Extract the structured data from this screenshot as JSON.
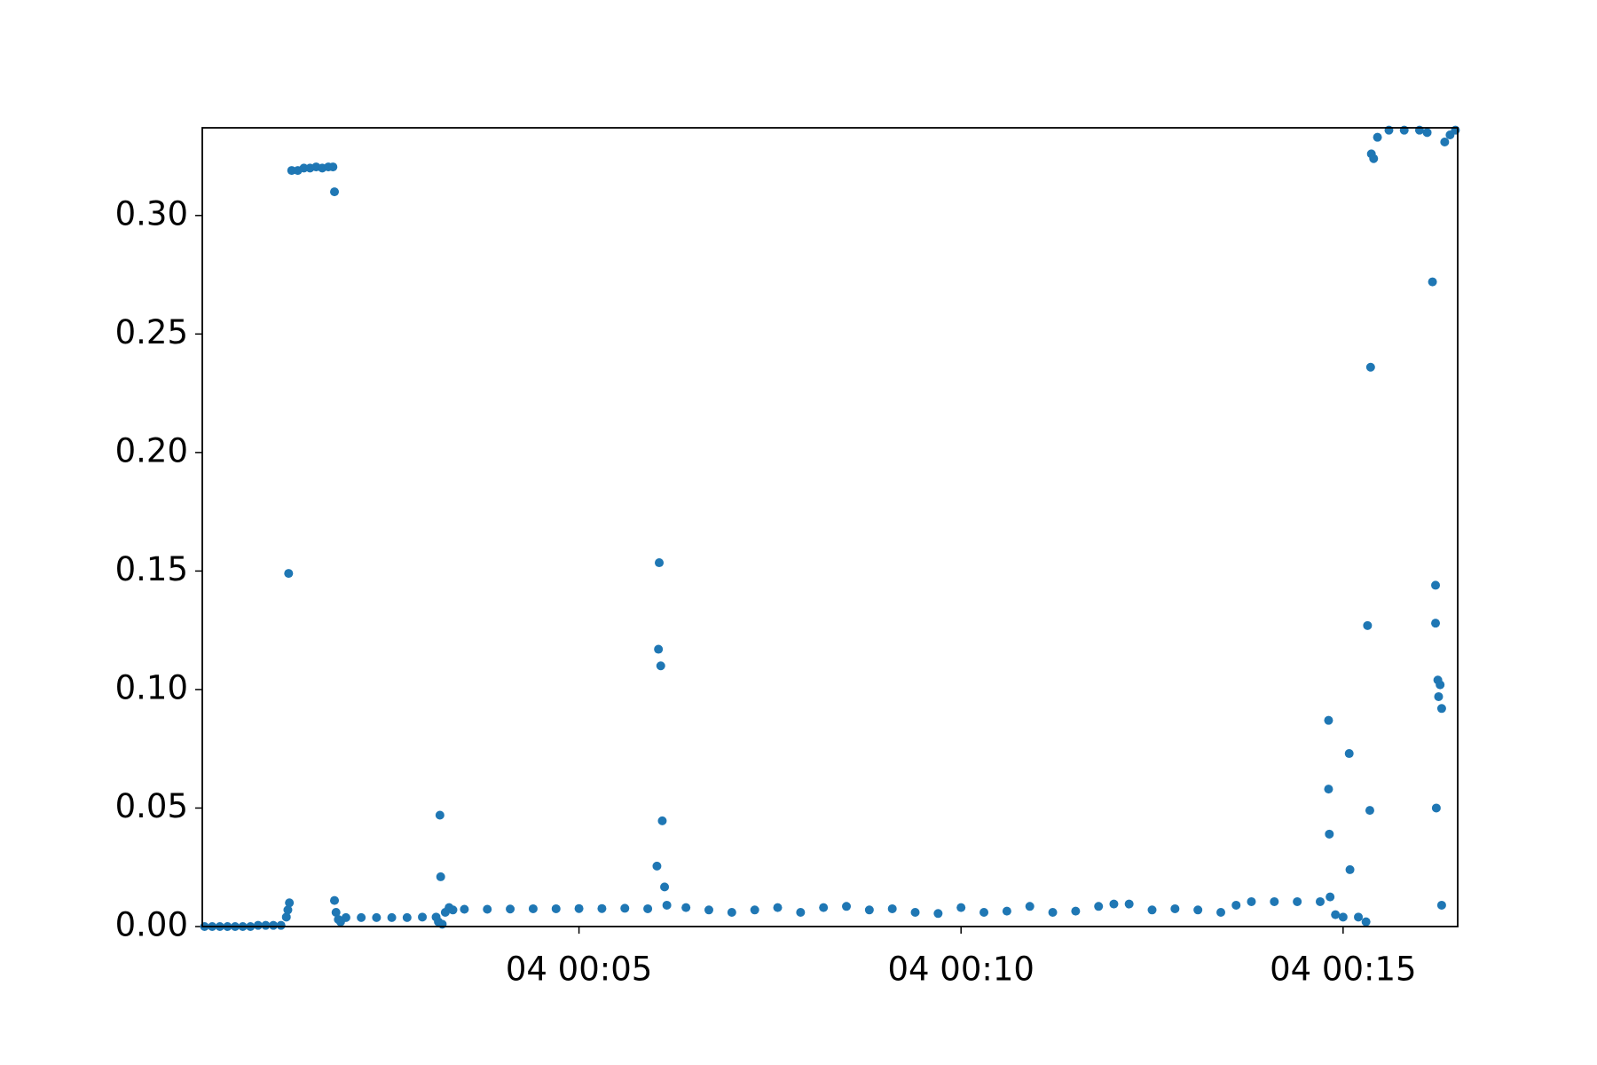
{
  "chart_data": {
    "type": "scatter",
    "color": "#1f77b4",
    "x": [
      0.1,
      0.2,
      0.3,
      0.4,
      0.5,
      0.6,
      0.7,
      0.8,
      0.9,
      1.0,
      1.1,
      1.17,
      1.19,
      1.2,
      1.21,
      1.24,
      1.32,
      1.4,
      1.48,
      1.56,
      1.64,
      1.72,
      1.78,
      1.8,
      1.8,
      1.82,
      1.85,
      1.88,
      1.95,
      2.15,
      2.35,
      2.55,
      2.75,
      2.95,
      3.13,
      3.16,
      3.18,
      3.19,
      3.21,
      3.25,
      3.3,
      3.35,
      3.5,
      3.8,
      4.1,
      4.4,
      4.7,
      5.0,
      5.3,
      5.6,
      5.9,
      6.02,
      6.04,
      6.05,
      6.07,
      6.09,
      6.12,
      6.15,
      6.4,
      6.7,
      7.0,
      7.3,
      7.6,
      7.9,
      8.2,
      8.5,
      8.8,
      9.1,
      9.4,
      9.7,
      10.0,
      10.3,
      10.6,
      10.9,
      11.2,
      11.5,
      11.8,
      12.0,
      12.2,
      12.5,
      12.8,
      13.1,
      13.4,
      13.6,
      13.8,
      14.1,
      14.4,
      14.7,
      14.81,
      14.81,
      14.82,
      14.83,
      14.9,
      15.0,
      15.08,
      15.09,
      15.2,
      15.3,
      15.32,
      15.35,
      15.36,
      15.37,
      15.4,
      15.45,
      15.6,
      15.8,
      16.0,
      16.1,
      16.17,
      16.21,
      16.21,
      16.22,
      16.24,
      16.25,
      16.27,
      16.29,
      16.29,
      16.33,
      16.4,
      16.47
    ],
    "series": [
      {
        "values": [
          0,
          0,
          0,
          0,
          0,
          0,
          0,
          0.0005,
          0.0005,
          0.0005,
          0.0005,
          0.004,
          0.007,
          0.149,
          0.01,
          0.319,
          0.319,
          0.32,
          0.32,
          0.3205,
          0.32,
          0.3205,
          0.3205,
          0.31,
          0.011,
          0.006,
          0.003,
          0.002,
          0.0038,
          0.0038,
          0.0038,
          0.0038,
          0.0038,
          0.004,
          0.004,
          0.002,
          0.047,
          0.021,
          0.001,
          0.006,
          0.008,
          0.007,
          0.0073,
          0.0073,
          0.0074,
          0.0075,
          0.0075,
          0.0076,
          0.0076,
          0.0077,
          0.0075,
          0.0255,
          0.117,
          0.1535,
          0.11,
          0.0446,
          0.0167,
          0.009,
          0.008,
          0.007,
          0.006,
          0.007,
          0.008,
          0.006,
          0.008,
          0.0085,
          0.007,
          0.0075,
          0.006,
          0.0055,
          0.008,
          0.006,
          0.0065,
          0.0085,
          0.006,
          0.0065,
          0.0085,
          0.0095,
          0.0095,
          0.007,
          0.0075,
          0.007,
          0.006,
          0.009,
          0.0105,
          0.0105,
          0.0105,
          0.0105,
          0.087,
          0.058,
          0.039,
          0.0125,
          0.005,
          0.004,
          0.073,
          0.024,
          0.004,
          0.002,
          0.127,
          0.049,
          0.236,
          0.326,
          0.324,
          0.333,
          0.336,
          0.336,
          0.336,
          0.335,
          0.272,
          0.144,
          0.128,
          0.05,
          0.104,
          0.097,
          0.102,
          0.092,
          0.009,
          0.331,
          0.334,
          0.336
        ]
      }
    ],
    "xlim": [
      0.07,
      16.5
    ],
    "xticks": [
      {
        "value": 5,
        "label": "04 00:05"
      },
      {
        "value": 10,
        "label": "04 00:10"
      },
      {
        "value": 15,
        "label": "04 00:15"
      }
    ],
    "ylim": [
      0,
      0.337
    ],
    "yticks": [
      {
        "value": 0,
        "label": "0.00"
      },
      0.05,
      {
        "value": 0.1,
        "label": "0.10"
      },
      0.15,
      {
        "value": 0.2,
        "label": "0.20"
      },
      0.25,
      {
        "value": 0.3,
        "label": "0.30"
      }
    ]
  }
}
